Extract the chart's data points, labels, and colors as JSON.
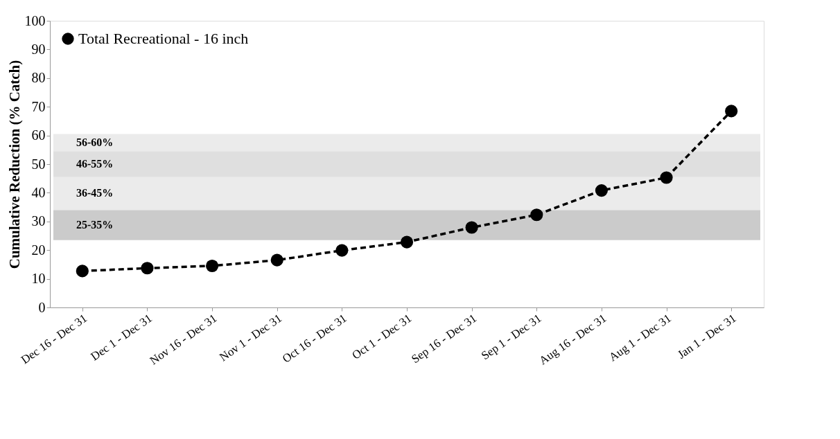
{
  "chart_data": {
    "type": "line",
    "ylabel": "Cumulative Reduction (% Catch)",
    "categories": [
      "Dec 16 - Dec 31",
      "Dec 1 - Dec 31",
      "Nov 16 - Dec 31",
      "Nov 1 - Dec 31",
      "Oct 16 - Dec 31",
      "Oct 1 - Dec 31",
      "Sep 16 - Dec 31",
      "Sep 1 - Dec 31",
      "Aug 16 - Dec 31",
      "Aug 1 - Dec 31",
      "Jan 1 - Dec 31"
    ],
    "series": [
      {
        "name": "Total Recreational - 16 inch",
        "color": "#000000",
        "values": [
          12.7,
          13.7,
          14.5,
          16.5,
          19.9,
          22.8,
          27.9,
          32.3,
          40.8,
          45.3,
          68.5
        ]
      }
    ],
    "ylim": [
      0,
      100
    ],
    "yticks": [
      0,
      10,
      20,
      30,
      40,
      50,
      60,
      70,
      80,
      90,
      100
    ],
    "bands": [
      {
        "axis": "y",
        "from": 23.5,
        "to": 34,
        "label": "25-35%",
        "color": "#cbcbcb"
      },
      {
        "axis": "y",
        "from": 34,
        "to": 45.5,
        "label": "36-45%",
        "color": "#ebebeb"
      },
      {
        "axis": "y",
        "from": 45.5,
        "to": 54.5,
        "label": "46-55%",
        "color": "#dfdfdf"
      },
      {
        "axis": "y",
        "from": 54.5,
        "to": 60.5,
        "label": "56-60%",
        "color": "#ebebeb"
      }
    ],
    "grid": false,
    "legend": "top left",
    "marker": "circle",
    "line_style": "dashed"
  }
}
